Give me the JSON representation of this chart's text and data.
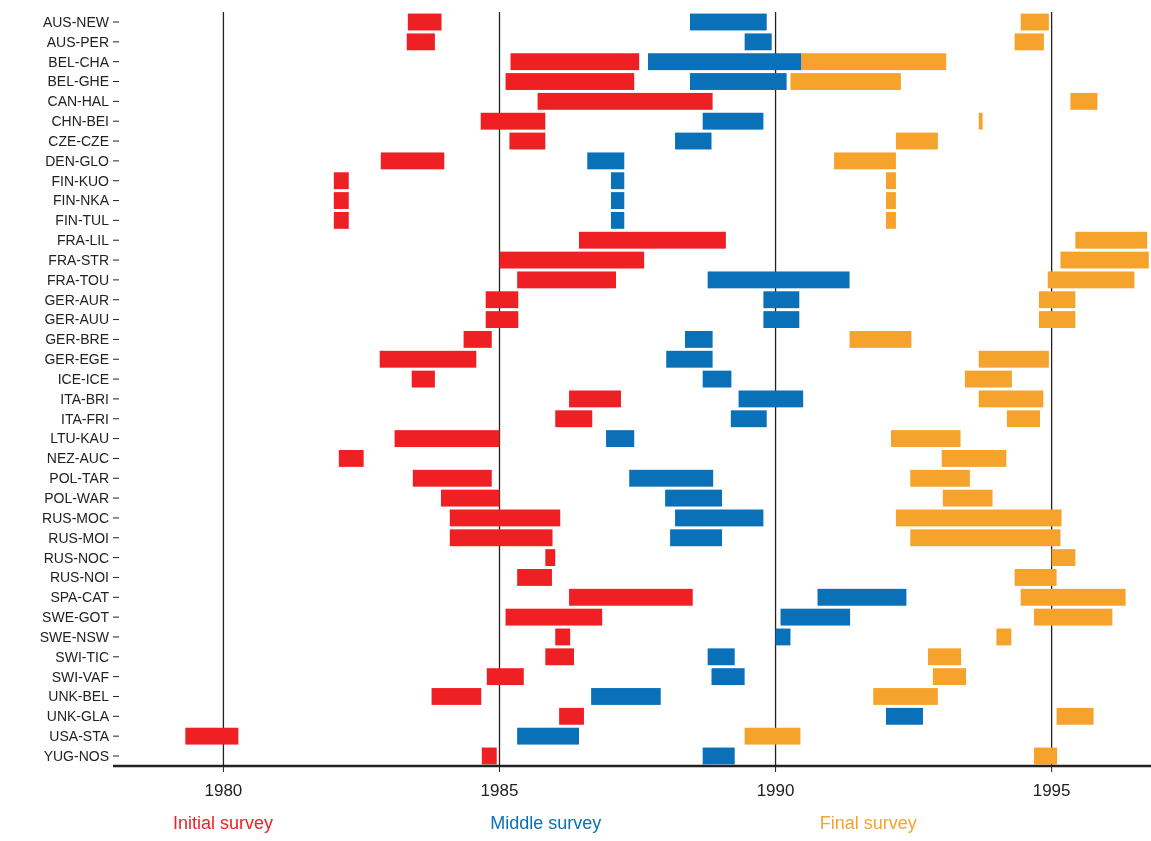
{
  "chart_data": {
    "type": "bar",
    "orientation": "horizontal",
    "categories": [
      "AUS-NEW",
      "AUS-PER",
      "BEL-CHA",
      "BEL-GHE",
      "CAN-HAL",
      "CHN-BEI",
      "CZE-CZE",
      "DEN-GLO",
      "FIN-KUO",
      "FIN-NKA",
      "FIN-TUL",
      "FRA-LIL",
      "FRA-STR",
      "FRA-TOU",
      "GER-AUR",
      "GER-AUU",
      "GER-BRE",
      "GER-EGE",
      "ICE-ICE",
      "ITA-BRI",
      "ITA-FRI",
      "LTU-KAU",
      "NEZ-AUC",
      "POL-TAR",
      "POL-WAR",
      "RUS-MOC",
      "RUS-MOI",
      "RUS-NOC",
      "RUS-NOI",
      "SPA-CAT",
      "SWE-GOT",
      "SWE-NSW",
      "SWI-TIC",
      "SWI-VAF",
      "UNK-BEL",
      "UNK-GLA",
      "USA-STA",
      "YUG-NOS"
    ],
    "xlim": [
      1978,
      1996.8
    ],
    "xticks": [
      1980,
      1985,
      1990,
      1995
    ],
    "grid": "x",
    "legend": "bottom",
    "series": [
      {
        "name": "Initial survey",
        "color": "#ee2024",
        "base": [
          1983.34,
          1983.32,
          1985.2,
          1985.11,
          1985.69,
          1984.66,
          1985.18,
          1982.85,
          1982.0,
          1982.0,
          1982.0,
          1986.44,
          1985.0,
          1985.32,
          1984.75,
          1984.75,
          1984.35,
          1982.83,
          1983.41,
          1986.26,
          1986.01,
          1983.1,
          1982.09,
          1983.43,
          1983.94,
          1984.1,
          1984.1,
          1985.83,
          1985.32,
          1986.26,
          1985.11,
          1986.01,
          1985.83,
          1984.77,
          1983.77,
          1986.08,
          1979.31,
          1984.68
        ],
        "values": [
          0.61,
          0.51,
          2.33,
          2.33,
          3.17,
          1.17,
          0.65,
          1.15,
          0.27,
          0.27,
          0.27,
          2.66,
          2.62,
          1.79,
          0.59,
          0.59,
          0.51,
          1.75,
          0.42,
          0.94,
          0.67,
          1.9,
          0.45,
          1.43,
          1.06,
          2.0,
          1.86,
          0.18,
          0.63,
          2.24,
          1.75,
          0.27,
          0.52,
          0.67,
          0.9,
          0.45,
          0.96,
          0.27
        ]
      },
      {
        "name": "Middle survey",
        "color": "#0a70b8",
        "base": [
          1988.45,
          1989.44,
          1987.69,
          1988.45,
          null,
          1988.68,
          1988.18,
          1986.59,
          1987.02,
          1987.02,
          1987.02,
          null,
          null,
          1988.77,
          1989.78,
          1989.78,
          1988.36,
          1988.02,
          1988.68,
          1989.33,
          1989.19,
          1986.93,
          null,
          1987.35,
          1988.0,
          1988.18,
          1988.09,
          null,
          null,
          1990.76,
          1990.09,
          1990.0,
          1988.77,
          1988.84,
          1986.66,
          1992.0,
          1985.32,
          1988.68
        ],
        "values": [
          1.39,
          0.49,
          2.78,
          1.75,
          null,
          1.1,
          0.66,
          0.67,
          0.24,
          0.24,
          0.24,
          null,
          null,
          2.57,
          0.65,
          0.65,
          0.5,
          0.84,
          0.52,
          1.17,
          0.65,
          0.51,
          null,
          1.52,
          1.03,
          1.6,
          0.94,
          null,
          null,
          1.61,
          1.26,
          0.27,
          0.49,
          0.6,
          1.26,
          0.67,
          1.12,
          0.58
        ]
      },
      {
        "name": "Final survey",
        "color": "#f5a32c",
        "base": [
          1994.44,
          1994.33,
          1990.47,
          1990.27,
          1995.34,
          1993.68,
          1992.18,
          1991.06,
          1992.0,
          1992.0,
          1992.0,
          1995.43,
          1995.16,
          1994.93,
          1994.77,
          1994.77,
          1991.34,
          1993.68,
          1993.43,
          1993.68,
          1994.19,
          1992.09,
          1993.01,
          1992.44,
          1993.03,
          1992.18,
          1992.44,
          1995.0,
          1994.33,
          1994.44,
          1994.68,
          1994.0,
          1992.76,
          1992.85,
          1991.77,
          1995.09,
          1989.44,
          1994.68
        ],
        "values": [
          0.51,
          0.53,
          2.62,
          2.0,
          0.49,
          0.07,
          0.76,
          1.12,
          0.18,
          0.18,
          0.18,
          1.3,
          1.6,
          1.57,
          0.66,
          0.66,
          1.12,
          1.27,
          0.85,
          1.17,
          0.6,
          1.26,
          1.17,
          1.08,
          0.9,
          3.0,
          2.72,
          0.43,
          0.76,
          1.9,
          1.42,
          0.27,
          0.6,
          0.6,
          1.17,
          0.67,
          1.01,
          0.42
        ]
      }
    ]
  }
}
